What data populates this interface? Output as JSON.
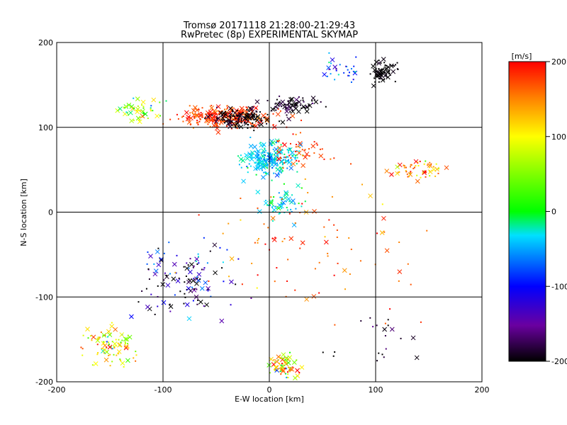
{
  "chart_data": {
    "type": "scatter",
    "title": "Tromsø 20171118 21:28:00-21:29:43",
    "subtitle": "RwPretec (8p) EXPERIMENTAL SKYMAP",
    "xlabel": "E-W location [km]",
    "ylabel": "N-S location [km]",
    "xlim": [
      -200,
      200
    ],
    "ylim": [
      -200,
      200
    ],
    "xticks": [
      "-200",
      "-100",
      "0",
      "100",
      "200"
    ],
    "yticks": [
      "-200",
      "-100",
      "0",
      "100",
      "200"
    ],
    "grid": true,
    "colorbar": {
      "label": "[m/s]",
      "range": [
        -200,
        200
      ],
      "ticks": [
        "200",
        "100",
        "0",
        "-100",
        "-200"
      ],
      "colormap": "black-purple-blue-cyan-green-yellow-red"
    },
    "clusters": [
      {
        "center": [
          -40,
          112
        ],
        "spread": [
          45,
          12
        ],
        "count": 260,
        "velocity": 180,
        "vspread": 40
      },
      {
        "center": [
          -25,
          110
        ],
        "spread": [
          25,
          12
        ],
        "count": 120,
        "velocity": -200,
        "vspread": 20
      },
      {
        "center": [
          20,
          125
        ],
        "spread": [
          30,
          10
        ],
        "count": 80,
        "velocity": -190,
        "vspread": 30
      },
      {
        "center": [
          108,
          165
        ],
        "spread": [
          15,
          12
        ],
        "count": 70,
        "velocity": -200,
        "vspread": 10
      },
      {
        "center": [
          70,
          170
        ],
        "spread": [
          20,
          15
        ],
        "count": 30,
        "velocity": -80,
        "vspread": 80
      },
      {
        "center": [
          0,
          62
        ],
        "spread": [
          25,
          18
        ],
        "count": 220,
        "velocity": -40,
        "vspread": 35
      },
      {
        "center": [
          10,
          10
        ],
        "spread": [
          20,
          20
        ],
        "count": 60,
        "velocity": -30,
        "vspread": 40
      },
      {
        "center": [
          140,
          50
        ],
        "spread": [
          22,
          10
        ],
        "count": 60,
        "velocity": 150,
        "vspread": 80
      },
      {
        "center": [
          -75,
          -75
        ],
        "spread": [
          45,
          45
        ],
        "count": 120,
        "velocity": -150,
        "vspread": 120
      },
      {
        "center": [
          -150,
          -160
        ],
        "spread": [
          25,
          22
        ],
        "count": 90,
        "velocity": 80,
        "vspread": 120
      },
      {
        "center": [
          15,
          -180
        ],
        "spread": [
          15,
          15
        ],
        "count": 70,
        "velocity": 100,
        "vspread": 150
      },
      {
        "center": [
          -120,
          120
        ],
        "spread": [
          20,
          15
        ],
        "count": 50,
        "velocity": 60,
        "vspread": 100
      },
      {
        "center": [
          30,
          70
        ],
        "spread": [
          30,
          25
        ],
        "count": 50,
        "velocity": 180,
        "vspread": 40
      },
      {
        "center": [
          40,
          -40
        ],
        "spread": [
          100,
          80
        ],
        "count": 90,
        "velocity": 170,
        "vspread": 50
      },
      {
        "center": [
          100,
          -150
        ],
        "spread": [
          40,
          30
        ],
        "count": 20,
        "velocity": -180,
        "vspread": 40
      }
    ]
  }
}
